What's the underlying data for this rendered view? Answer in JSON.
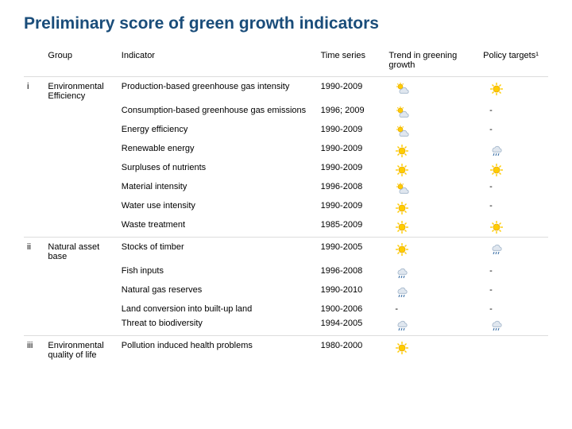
{
  "title": "Preliminary score of green growth indicators",
  "colors": {
    "title": "#1a4d7a",
    "sun_fill": "#ffcc00",
    "sun_stroke": "#e6a800",
    "cloud_fill": "#e0e7ef",
    "cloud_stroke": "#9fb3c8",
    "rain": "#3a6ea5"
  },
  "columns": {
    "c0": "",
    "c1": "Group",
    "c2": "Indicator",
    "c3": "Time series",
    "c4": "Trend in greening growth",
    "c5": "Policy targets¹"
  },
  "rows": [
    {
      "group_start": true,
      "idx": "i",
      "group": "Environmental Efficiency",
      "indicator": "Production-based greenhouse gas intensity",
      "time": "1990-2009",
      "trend_icon": "sun-cloud",
      "policy_icon": "sun"
    },
    {
      "group_start": false,
      "idx": "",
      "group": "",
      "indicator": "Consumption-based greenhouse gas emissions",
      "time": "1996; 2009",
      "trend_icon": "sun-cloud",
      "policy_icon": "dash"
    },
    {
      "group_start": false,
      "idx": "",
      "group": "",
      "indicator": "Energy efficiency",
      "time": "1990-2009",
      "trend_icon": "sun-cloud",
      "policy_icon": "dash"
    },
    {
      "group_start": false,
      "idx": "",
      "group": "",
      "indicator": "Renewable energy",
      "time": "1990-2009",
      "trend_icon": "sun",
      "policy_icon": "rain-cloud"
    },
    {
      "group_start": false,
      "idx": "",
      "group": "",
      "indicator": "Surpluses of nutrients",
      "time": "1990-2009",
      "trend_icon": "sun",
      "policy_icon": "sun"
    },
    {
      "group_start": false,
      "idx": "",
      "group": "",
      "indicator": "Material intensity",
      "time": "1996-2008",
      "trend_icon": "sun-cloud",
      "policy_icon": "dash"
    },
    {
      "group_start": false,
      "idx": "",
      "group": "",
      "indicator": "Water use intensity",
      "time": "1990-2009",
      "trend_icon": "sun",
      "policy_icon": "dash"
    },
    {
      "group_start": false,
      "idx": "",
      "group": "",
      "indicator": "Waste treatment",
      "time": "1985-2009",
      "trend_icon": "sun",
      "policy_icon": "sun"
    },
    {
      "group_start": true,
      "idx": "ii",
      "group": "Natural asset base",
      "indicator": "Stocks of timber",
      "time": "1990-2005",
      "trend_icon": "sun",
      "policy_icon": "rain-cloud"
    },
    {
      "group_start": false,
      "idx": "",
      "group": "",
      "indicator": "Fish inputs",
      "time": "1996-2008",
      "trend_icon": "rain-cloud",
      "policy_icon": "dash"
    },
    {
      "group_start": false,
      "idx": "",
      "group": "",
      "indicator": "Natural gas reserves",
      "time": "1990-2010",
      "trend_icon": "rain-cloud",
      "policy_icon": "dash"
    },
    {
      "group_start": false,
      "idx": "",
      "group": "",
      "indicator": "Land conversion into built-up land",
      "time": "1900-2006",
      "trend_icon": "dash",
      "policy_icon": "dash"
    },
    {
      "group_start": false,
      "idx": "",
      "group": "",
      "indicator": "Threat to biodiversity",
      "time": "1994-2005",
      "trend_icon": "rain-cloud",
      "policy_icon": "rain-cloud"
    },
    {
      "group_start": true,
      "idx": "iii",
      "group": "Environmental quality of life",
      "indicator": "Pollution induced health problems",
      "time": "1980-2000",
      "trend_icon": "sun",
      "policy_icon": ""
    }
  ]
}
